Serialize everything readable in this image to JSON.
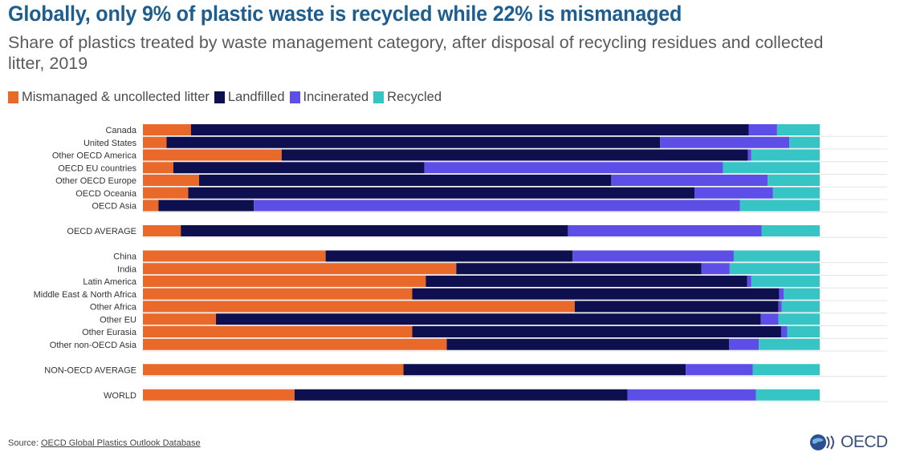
{
  "header": {
    "title": "Globally, only 9% of plastic waste is recycled while 22% is mismanaged",
    "subtitle": "Share of plastics treated by waste management category, after disposal of recycling residues and collected litter, 2019"
  },
  "colors": {
    "mismanaged": "#e8692a",
    "landfilled": "#0d0f4f",
    "incinerated": "#5d4ee8",
    "recycled": "#36c5c4"
  },
  "footer": {
    "source_prefix": "Source: ",
    "source_link": "OECD Global Plastics Outlook Database",
    "logo_text": "OECD"
  },
  "chart_data": {
    "type": "bar",
    "orientation": "horizontal",
    "stacked": true,
    "xlim": [
      0,
      100
    ],
    "grid": false,
    "legend_position": "top-left",
    "categories": [
      "Canada",
      "United States",
      "Other OECD America",
      "OECD EU countries",
      "Other OECD Europe",
      "OECD Oceania",
      "OECD Asia",
      "OECD AVERAGE",
      "China",
      "India",
      "Latin America",
      "Middle East & North Africa",
      "Other Africa",
      "Other EU",
      "Other Eurasia",
      "Other non-OECD Asia",
      "NON-OECD AVERAGE",
      "WORLD"
    ],
    "groups": [
      [
        "Canada",
        "United States",
        "Other OECD America",
        "OECD EU countries",
        "Other OECD Europe",
        "OECD Oceania",
        "OECD Asia"
      ],
      [
        "OECD AVERAGE"
      ],
      [
        "China",
        "India",
        "Latin America",
        "Middle East & North Africa",
        "Other Africa",
        "Other EU",
        "Other Eurasia",
        "Other non-OECD Asia"
      ],
      [
        "NON-OECD AVERAGE"
      ],
      [
        "WORLD"
      ]
    ],
    "series": [
      {
        "name": "Mismanaged & uncollected litter",
        "color": "#e8692a",
        "values": [
          7.1,
          3.5,
          20.5,
          4.5,
          8.3,
          6.7,
          2.3,
          5.6,
          27.0,
          46.3,
          41.8,
          39.8,
          63.8,
          10.8,
          39.8,
          44.9,
          38.5,
          22.4
        ]
      },
      {
        "name": "Landfilled",
        "color": "#0d0f4f",
        "values": [
          82.4,
          72.9,
          68.9,
          37.1,
          60.9,
          74.8,
          14.1,
          57.2,
          36.5,
          36.2,
          47.5,
          54.2,
          30.1,
          80.5,
          54.5,
          41.7,
          41.7,
          49.2
        ]
      },
      {
        "name": "Incinerated",
        "color": "#5d4ee8",
        "values": [
          4.2,
          19.1,
          0.5,
          44.1,
          23.1,
          11.6,
          71.8,
          28.6,
          23.8,
          4.2,
          0.6,
          0.7,
          0.5,
          2.6,
          0.9,
          4.4,
          9.9,
          19.0
        ]
      },
      {
        "name": "Recycled",
        "color": "#36c5c4",
        "values": [
          6.3,
          4.5,
          10.1,
          14.3,
          7.7,
          6.9,
          11.8,
          8.6,
          12.7,
          13.3,
          10.1,
          5.3,
          5.6,
          6.1,
          4.8,
          9.0,
          9.9,
          9.4
        ]
      }
    ]
  }
}
